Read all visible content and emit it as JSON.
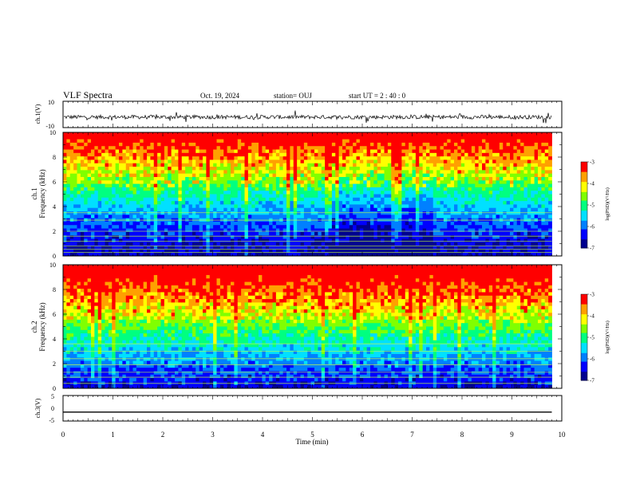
{
  "header": {
    "title": "VLF Spectra",
    "date": "Oct. 19, 2024",
    "station": "station= OUJ",
    "start": "start UT =  2 : 40 : 0"
  },
  "chart_data": [
    {
      "type": "line",
      "panel": "ch1-waveform",
      "ylabel": "ch.1(V)",
      "ylim": [
        -10,
        10
      ],
      "yticks": [
        "10",
        "-10"
      ],
      "x_range": [
        0,
        10
      ],
      "description_values": {
        "baseline": -2,
        "noise_amplitude": 3
      }
    },
    {
      "type": "heatmap",
      "panel": "ch1-spectrogram",
      "ylabel_line1": "ch.1",
      "ylabel_line2": "Frequency (kHz)",
      "ylim": [
        0,
        10
      ],
      "yticks": [
        "0",
        "2",
        "4",
        "6",
        "8",
        "10"
      ],
      "xlim": [
        0,
        10
      ],
      "data_extent_min": 9.8,
      "colorbar": {
        "label": "log(PSD)(V²/Hz)",
        "range": [
          -7,
          -3
        ],
        "ticks": [
          "-3",
          "-4",
          "-5",
          "-6",
          "-7"
        ]
      },
      "colormap": [
        "#00008f",
        "#0000ff",
        "#0080ff",
        "#00e0ff",
        "#00ff80",
        "#80ff00",
        "#ffff00",
        "#ffa000",
        "#ff0000"
      ]
    },
    {
      "type": "heatmap",
      "panel": "ch2-spectrogram",
      "ylabel_line1": "ch.2",
      "ylabel_line2": "Frequency (kHz)",
      "ylim": [
        0,
        10
      ],
      "yticks": [
        "0",
        "2",
        "4",
        "6",
        "8",
        "10"
      ],
      "xlim": [
        0,
        10
      ],
      "data_extent_min": 9.8,
      "colorbar": {
        "label": "log(PSD)(V²/Hz)",
        "range": [
          -7,
          -3
        ],
        "ticks": [
          "-3",
          "-4",
          "-5",
          "-6",
          "-7"
        ]
      },
      "colormap": [
        "#00008f",
        "#0000ff",
        "#0080ff",
        "#00e0ff",
        "#00ff80",
        "#80ff00",
        "#ffff00",
        "#ffa000",
        "#ff0000"
      ]
    },
    {
      "type": "line",
      "panel": "ch3-waveform",
      "ylabel": "ch.3(V)",
      "ylim": [
        -5,
        5
      ],
      "yticks": [
        "5",
        "0",
        "-5"
      ],
      "x_range": [
        0,
        9.8
      ],
      "values_constant": -1.5,
      "xlabel": "Time (min)",
      "xticks": [
        "0",
        "1",
        "2",
        "3",
        "4",
        "5",
        "6",
        "7",
        "8",
        "9",
        "10"
      ]
    }
  ]
}
